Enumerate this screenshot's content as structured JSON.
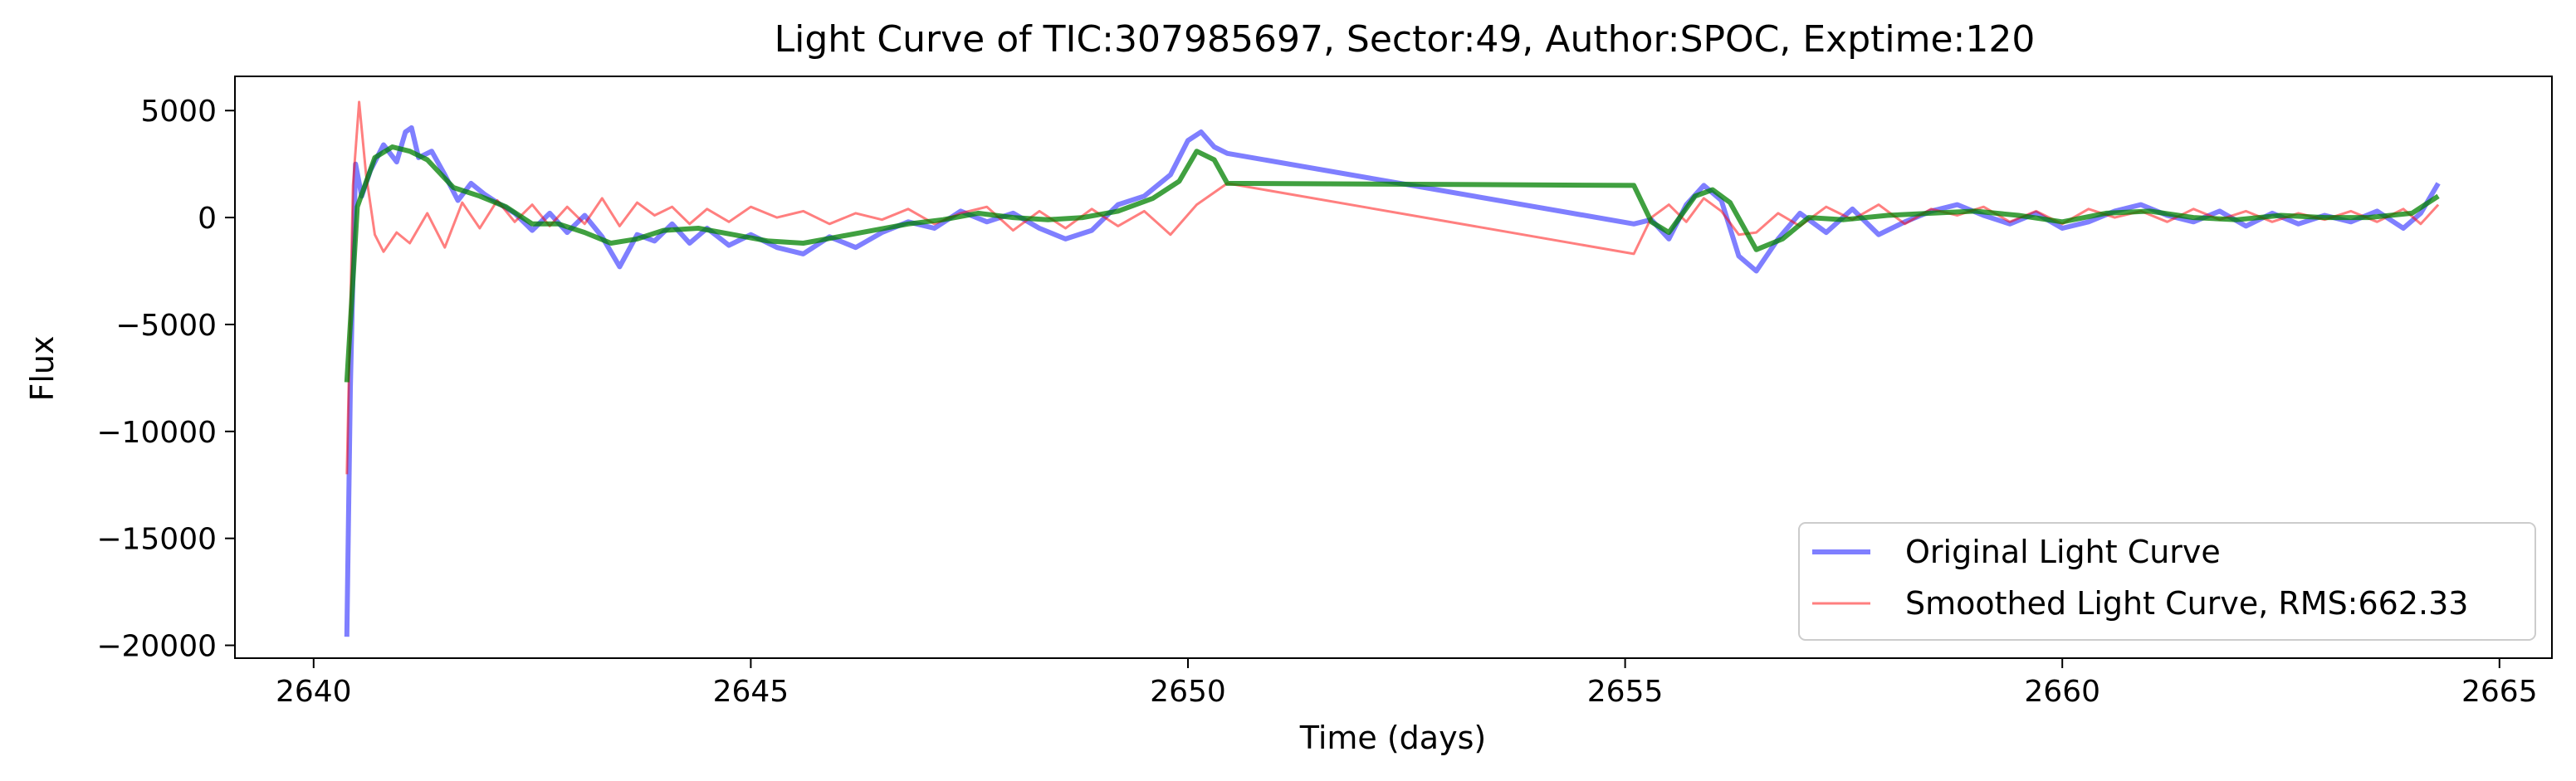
{
  "chart_data": {
    "type": "line",
    "title": "Light Curve of TIC:307985697, Sector:49, Author:SPOC, Exptime:120",
    "xlabel": "Time (days)",
    "ylabel": "Flux",
    "xlim": [
      2639.1,
      2665.6
    ],
    "ylim": [
      -20600,
      6600
    ],
    "xticks": [
      2640,
      2645,
      2650,
      2655,
      2660,
      2665
    ],
    "yticks": [
      5000,
      0,
      -5000,
      -10000,
      -15000,
      -20000
    ],
    "grid": false,
    "legend_position": "lower-right",
    "series": [
      {
        "name": "Original Light Curve",
        "color": "#0000ff",
        "opacity": 0.5,
        "points": [
          [
            2640.38,
            -19600
          ],
          [
            2640.42,
            -8000
          ],
          [
            2640.48,
            2500
          ],
          [
            2640.55,
            1000
          ],
          [
            2640.65,
            2200
          ],
          [
            2640.8,
            3400
          ],
          [
            2640.95,
            2600
          ],
          [
            2641.05,
            4000
          ],
          [
            2641.12,
            4200
          ],
          [
            2641.2,
            2800
          ],
          [
            2641.35,
            3100
          ],
          [
            2641.5,
            2000
          ],
          [
            2641.65,
            800
          ],
          [
            2641.8,
            1600
          ],
          [
            2641.95,
            1100
          ],
          [
            2642.1,
            700
          ],
          [
            2642.3,
            200
          ],
          [
            2642.5,
            -600
          ],
          [
            2642.7,
            200
          ],
          [
            2642.9,
            -700
          ],
          [
            2643.1,
            100
          ],
          [
            2643.3,
            -900
          ],
          [
            2643.5,
            -2300
          ],
          [
            2643.7,
            -800
          ],
          [
            2643.9,
            -1100
          ],
          [
            2644.1,
            -300
          ],
          [
            2644.3,
            -1200
          ],
          [
            2644.5,
            -500
          ],
          [
            2644.75,
            -1300
          ],
          [
            2645.0,
            -800
          ],
          [
            2645.3,
            -1400
          ],
          [
            2645.6,
            -1700
          ],
          [
            2645.9,
            -900
          ],
          [
            2646.2,
            -1400
          ],
          [
            2646.5,
            -700
          ],
          [
            2646.8,
            -200
          ],
          [
            2647.1,
            -500
          ],
          [
            2647.4,
            300
          ],
          [
            2647.7,
            -200
          ],
          [
            2648.0,
            200
          ],
          [
            2648.3,
            -500
          ],
          [
            2648.6,
            -1000
          ],
          [
            2648.9,
            -600
          ],
          [
            2649.2,
            600
          ],
          [
            2649.5,
            1000
          ],
          [
            2649.8,
            2000
          ],
          [
            2650.0,
            3600
          ],
          [
            2650.15,
            4000
          ],
          [
            2650.3,
            3300
          ],
          [
            2650.45,
            3000
          ],
          [
            2655.1,
            -300
          ],
          [
            2655.3,
            -100
          ],
          [
            2655.5,
            -1000
          ],
          [
            2655.7,
            600
          ],
          [
            2655.9,
            1500
          ],
          [
            2656.1,
            800
          ],
          [
            2656.3,
            -1800
          ],
          [
            2656.5,
            -2500
          ],
          [
            2656.75,
            -1000
          ],
          [
            2657.0,
            200
          ],
          [
            2657.3,
            -700
          ],
          [
            2657.6,
            400
          ],
          [
            2657.9,
            -800
          ],
          [
            2658.2,
            -200
          ],
          [
            2658.5,
            300
          ],
          [
            2658.8,
            600
          ],
          [
            2659.1,
            100
          ],
          [
            2659.4,
            -300
          ],
          [
            2659.7,
            200
          ],
          [
            2660.0,
            -500
          ],
          [
            2660.3,
            -200
          ],
          [
            2660.6,
            300
          ],
          [
            2660.9,
            600
          ],
          [
            2661.2,
            100
          ],
          [
            2661.5,
            -200
          ],
          [
            2661.8,
            300
          ],
          [
            2662.1,
            -400
          ],
          [
            2662.4,
            200
          ],
          [
            2662.7,
            -300
          ],
          [
            2663.0,
            100
          ],
          [
            2663.3,
            -200
          ],
          [
            2663.6,
            300
          ],
          [
            2663.9,
            -500
          ],
          [
            2664.1,
            200
          ],
          [
            2664.3,
            1600
          ]
        ]
      },
      {
        "name": "Smoothed Light Curve, RMS:662.33",
        "color": "#ff0000",
        "opacity": 0.5,
        "points": [
          [
            2640.38,
            -12000
          ],
          [
            2640.45,
            1500
          ],
          [
            2640.52,
            5400
          ],
          [
            2640.6,
            2000
          ],
          [
            2640.7,
            -800
          ],
          [
            2640.8,
            -1600
          ],
          [
            2640.95,
            -700
          ],
          [
            2641.1,
            -1200
          ],
          [
            2641.3,
            200
          ],
          [
            2641.5,
            -1400
          ],
          [
            2641.7,
            700
          ],
          [
            2641.9,
            -500
          ],
          [
            2642.1,
            800
          ],
          [
            2642.3,
            -200
          ],
          [
            2642.5,
            600
          ],
          [
            2642.7,
            -400
          ],
          [
            2642.9,
            500
          ],
          [
            2643.1,
            -300
          ],
          [
            2643.3,
            900
          ],
          [
            2643.5,
            -400
          ],
          [
            2643.7,
            700
          ],
          [
            2643.9,
            100
          ],
          [
            2644.1,
            500
          ],
          [
            2644.3,
            -300
          ],
          [
            2644.5,
            400
          ],
          [
            2644.75,
            -200
          ],
          [
            2645.0,
            500
          ],
          [
            2645.3,
            0
          ],
          [
            2645.6,
            300
          ],
          [
            2645.9,
            -300
          ],
          [
            2646.2,
            200
          ],
          [
            2646.5,
            -100
          ],
          [
            2646.8,
            400
          ],
          [
            2647.1,
            -300
          ],
          [
            2647.4,
            200
          ],
          [
            2647.7,
            500
          ],
          [
            2648.0,
            -600
          ],
          [
            2648.3,
            300
          ],
          [
            2648.6,
            -500
          ],
          [
            2648.9,
            400
          ],
          [
            2649.2,
            -400
          ],
          [
            2649.5,
            300
          ],
          [
            2649.8,
            -800
          ],
          [
            2650.1,
            600
          ],
          [
            2650.45,
            1600
          ],
          [
            2655.1,
            -1700
          ],
          [
            2655.3,
            0
          ],
          [
            2655.5,
            600
          ],
          [
            2655.7,
            -200
          ],
          [
            2655.9,
            900
          ],
          [
            2656.1,
            300
          ],
          [
            2656.3,
            -800
          ],
          [
            2656.5,
            -700
          ],
          [
            2656.75,
            200
          ],
          [
            2657.0,
            -400
          ],
          [
            2657.3,
            500
          ],
          [
            2657.6,
            -100
          ],
          [
            2657.9,
            600
          ],
          [
            2658.2,
            -300
          ],
          [
            2658.5,
            400
          ],
          [
            2658.8,
            100
          ],
          [
            2659.1,
            500
          ],
          [
            2659.4,
            -200
          ],
          [
            2659.7,
            300
          ],
          [
            2660.0,
            -300
          ],
          [
            2660.3,
            400
          ],
          [
            2660.6,
            0
          ],
          [
            2660.9,
            300
          ],
          [
            2661.2,
            -200
          ],
          [
            2661.5,
            400
          ],
          [
            2661.8,
            -100
          ],
          [
            2662.1,
            300
          ],
          [
            2662.4,
            -200
          ],
          [
            2662.7,
            200
          ],
          [
            2663.0,
            -100
          ],
          [
            2663.3,
            300
          ],
          [
            2663.6,
            -200
          ],
          [
            2663.9,
            400
          ],
          [
            2664.1,
            -300
          ],
          [
            2664.3,
            600
          ]
        ]
      },
      {
        "name": "",
        "color": "#008000",
        "opacity": 0.75,
        "points": [
          [
            2640.38,
            -7700
          ],
          [
            2640.5,
            500
          ],
          [
            2640.7,
            2800
          ],
          [
            2640.9,
            3300
          ],
          [
            2641.1,
            3100
          ],
          [
            2641.3,
            2700
          ],
          [
            2641.6,
            1400
          ],
          [
            2641.9,
            1000
          ],
          [
            2642.2,
            500
          ],
          [
            2642.5,
            -300
          ],
          [
            2642.8,
            -300
          ],
          [
            2643.1,
            -700
          ],
          [
            2643.4,
            -1200
          ],
          [
            2643.7,
            -1000
          ],
          [
            2644.0,
            -600
          ],
          [
            2644.4,
            -500
          ],
          [
            2644.8,
            -800
          ],
          [
            2645.2,
            -1100
          ],
          [
            2645.6,
            -1200
          ],
          [
            2646.0,
            -900
          ],
          [
            2646.4,
            -600
          ],
          [
            2646.8,
            -300
          ],
          [
            2647.2,
            -100
          ],
          [
            2647.6,
            200
          ],
          [
            2648.0,
            0
          ],
          [
            2648.4,
            -100
          ],
          [
            2648.8,
            0
          ],
          [
            2649.2,
            300
          ],
          [
            2649.6,
            900
          ],
          [
            2649.9,
            1700
          ],
          [
            2650.1,
            3100
          ],
          [
            2650.3,
            2700
          ],
          [
            2650.45,
            1600
          ],
          [
            2655.1,
            1500
          ],
          [
            2655.3,
            -200
          ],
          [
            2655.5,
            -700
          ],
          [
            2655.8,
            1000
          ],
          [
            2656.0,
            1300
          ],
          [
            2656.2,
            700
          ],
          [
            2656.5,
            -1500
          ],
          [
            2656.8,
            -1000
          ],
          [
            2657.1,
            0
          ],
          [
            2657.5,
            -100
          ],
          [
            2658.0,
            100
          ],
          [
            2658.5,
            200
          ],
          [
            2659.0,
            300
          ],
          [
            2659.5,
            100
          ],
          [
            2660.0,
            -200
          ],
          [
            2660.5,
            200
          ],
          [
            2661.0,
            300
          ],
          [
            2661.5,
            0
          ],
          [
            2662.0,
            -100
          ],
          [
            2662.5,
            100
          ],
          [
            2663.0,
            0
          ],
          [
            2663.5,
            0
          ],
          [
            2664.0,
            200
          ],
          [
            2664.3,
            1000
          ]
        ]
      }
    ]
  }
}
